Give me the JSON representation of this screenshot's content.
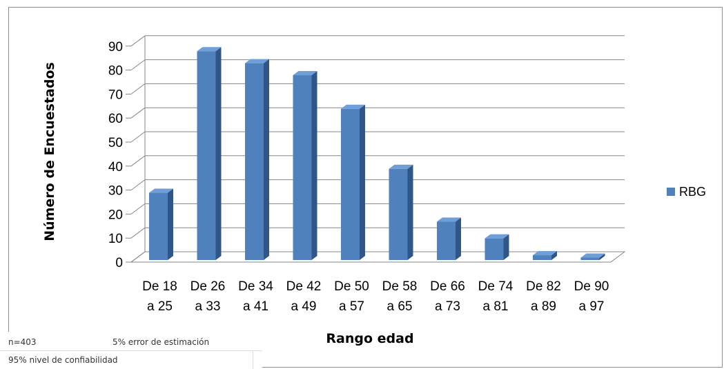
{
  "chart_data": {
    "type": "bar",
    "style": "3d-column",
    "categories": [
      [
        "De 18",
        "a 25"
      ],
      [
        "De 26",
        "a 33"
      ],
      [
        "De 34",
        "a 41"
      ],
      [
        "De 42",
        "a 49"
      ],
      [
        "De 50",
        "a 57"
      ],
      [
        "De 58",
        "a 65"
      ],
      [
        "De 66",
        "a 73"
      ],
      [
        "De 74",
        "a 81"
      ],
      [
        "De 82",
        "a 89"
      ],
      [
        "De 90",
        "a 97"
      ]
    ],
    "series": [
      {
        "name": "RBG",
        "values": [
          28,
          87,
          82,
          77,
          63,
          38,
          16,
          9,
          2,
          1
        ],
        "color": "#4f81bd"
      }
    ],
    "title": "",
    "xlabel": "Rango edad",
    "ylabel": "Número de Encuestados",
    "ylim": [
      0,
      90
    ],
    "yticks": [
      0,
      10,
      20,
      30,
      40,
      50,
      60,
      70,
      80,
      90
    ],
    "grid": true,
    "legend": "right"
  },
  "notes": {
    "sample": "n=403",
    "error": "5% error de estimación",
    "confidence": "95% nivel de confiabilidad"
  }
}
